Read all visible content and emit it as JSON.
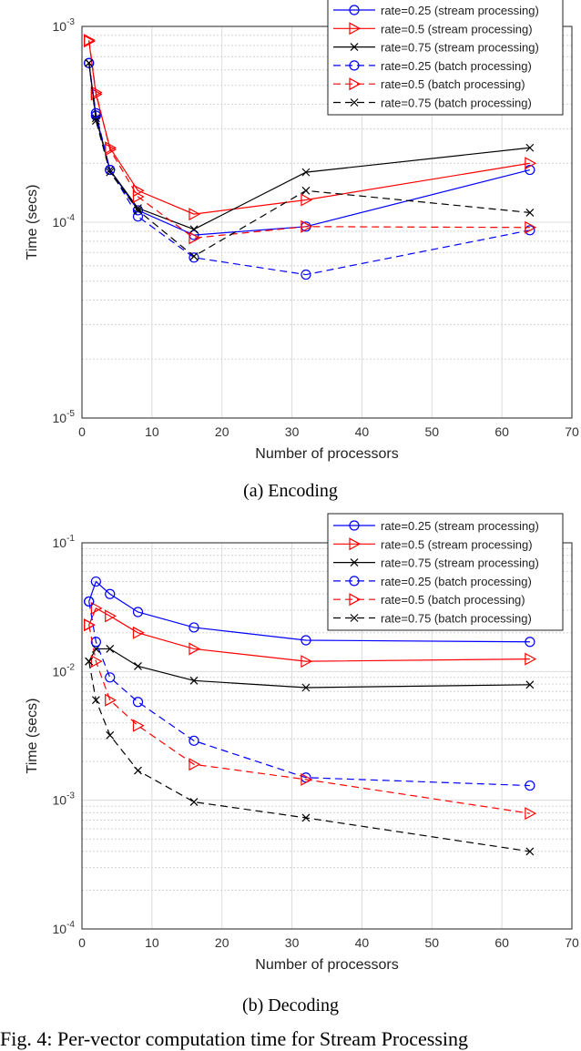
{
  "chart_data": [
    {
      "type": "line",
      "title": "",
      "caption": "(a) Encoding",
      "xlabel": "Number of processors",
      "ylabel": "Time (secs)",
      "yscale": "log",
      "xlim": [
        0,
        70
      ],
      "ylim": [
        1e-05,
        0.001
      ],
      "xticks": [
        "0",
        "10",
        "20",
        "30",
        "40",
        "50",
        "60",
        "70"
      ],
      "yticks": [
        {
          "base": "10",
          "exp": "-5"
        },
        {
          "base": "10",
          "exp": "-4"
        },
        {
          "base": "10",
          "exp": "-3"
        }
      ],
      "grid": true,
      "legend": "top-right",
      "x": [
        1,
        2,
        4,
        8,
        16,
        32,
        64
      ],
      "series": [
        {
          "name": "rate=0.25 (stream processing)",
          "color": "#0000ff",
          "style": "solid",
          "marker": "circle",
          "values": [
            0.00065,
            0.00035,
            0.000185,
            0.000115,
            8.6e-05,
            9.5e-05,
            0.000185
          ]
        },
        {
          "name": "rate=0.5 (stream processing)",
          "color": "#ff0000",
          "style": "solid",
          "marker": "triangle-right",
          "values": [
            0.00084,
            0.00045,
            0.00024,
            0.000145,
            0.00011,
            0.00013,
            0.0002
          ]
        },
        {
          "name": "rate=0.75 (stream processing)",
          "color": "#000000",
          "style": "solid",
          "marker": "x",
          "values": [
            0.00065,
            0.00034,
            0.000185,
            0.000118,
            9.2e-05,
            0.00018,
            0.00024
          ]
        },
        {
          "name": "rate=0.25 (batch processing)",
          "color": "#0000ff",
          "style": "dashed",
          "marker": "circle",
          "values": [
            0.00065,
            0.00036,
            0.000185,
            0.000107,
            6.6e-05,
            5.4e-05,
            9.1e-05
          ]
        },
        {
          "name": "rate=0.5 (batch processing)",
          "color": "#ff0000",
          "style": "dashed",
          "marker": "triangle-right",
          "values": [
            0.00085,
            0.00046,
            0.000235,
            0.000135,
            8.3e-05,
            9.5e-05,
            9.4e-05
          ]
        },
        {
          "name": "rate=0.75 (batch processing)",
          "color": "#000000",
          "style": "dashed",
          "marker": "x",
          "values": [
            0.00065,
            0.00033,
            0.00018,
            0.000115,
            6.7e-05,
            0.000145,
            0.000112
          ]
        }
      ]
    },
    {
      "type": "line",
      "title": "",
      "caption": "(b) Decoding",
      "xlabel": "Number of processors",
      "ylabel": "Time (secs)",
      "yscale": "log",
      "xlim": [
        0,
        70
      ],
      "ylim": [
        0.0001,
        0.1
      ],
      "xticks": [
        "0",
        "10",
        "20",
        "30",
        "40",
        "50",
        "60",
        "70"
      ],
      "yticks": [
        {
          "base": "10",
          "exp": "-4"
        },
        {
          "base": "10",
          "exp": "-3"
        },
        {
          "base": "10",
          "exp": "-2"
        },
        {
          "base": "10",
          "exp": "-1"
        }
      ],
      "grid": true,
      "legend": "top-right",
      "x": [
        1,
        2,
        4,
        8,
        16,
        32,
        64
      ],
      "series": [
        {
          "name": "rate=0.25 (stream processing)",
          "color": "#0000ff",
          "style": "solid",
          "marker": "circle",
          "values": [
            0.035,
            0.05,
            0.04,
            0.029,
            0.022,
            0.0175,
            0.017
          ]
        },
        {
          "name": "rate=0.5 (stream processing)",
          "color": "#ff0000",
          "style": "solid",
          "marker": "triangle-right",
          "values": [
            0.023,
            0.031,
            0.027,
            0.02,
            0.015,
            0.012,
            0.0125
          ]
        },
        {
          "name": "rate=0.75 (stream processing)",
          "color": "#000000",
          "style": "solid",
          "marker": "x",
          "values": [
            0.012,
            0.015,
            0.015,
            0.011,
            0.0085,
            0.0075,
            0.0079
          ]
        },
        {
          "name": "rate=0.25 (batch processing)",
          "color": "#0000ff",
          "style": "dashed",
          "marker": "circle",
          "values": [
            0.035,
            0.017,
            0.009,
            0.0058,
            0.0029,
            0.0015,
            0.0013
          ]
        },
        {
          "name": "rate=0.5 (batch processing)",
          "color": "#ff0000",
          "style": "dashed",
          "marker": "triangle-right",
          "values": [
            0.023,
            0.012,
            0.006,
            0.0038,
            0.0019,
            0.00145,
            0.00079
          ]
        },
        {
          "name": "rate=0.75 (batch processing)",
          "color": "#000000",
          "style": "dashed",
          "marker": "x",
          "values": [
            0.012,
            0.006,
            0.0032,
            0.0017,
            0.00097,
            0.00073,
            0.0004
          ]
        }
      ]
    }
  ],
  "figure_caption": "Fig. 4: Per-vector computation time for Stream Processing"
}
